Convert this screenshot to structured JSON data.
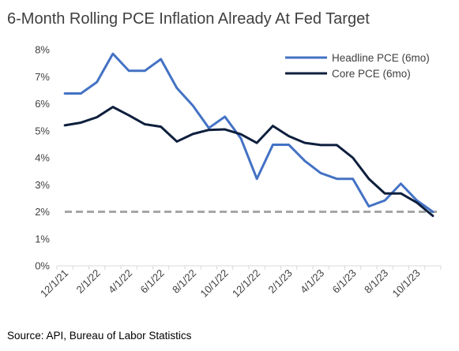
{
  "chart_data": {
    "type": "line",
    "title": "6-Month Rolling PCE Inflation Already At Fed Target",
    "source": "Source: API, Bureau of Labor Statistics",
    "xlabel": "",
    "ylabel": "",
    "ylim": [
      0,
      8
    ],
    "y_ticks": [
      0,
      1,
      2,
      3,
      4,
      5,
      6,
      7,
      8
    ],
    "y_tick_labels": [
      "0%",
      "1%",
      "2%",
      "3%",
      "4%",
      "5%",
      "6%",
      "7%",
      "8%"
    ],
    "x": [
      "12/1/21",
      "1/1/22",
      "2/1/22",
      "3/1/22",
      "4/1/22",
      "5/1/22",
      "6/1/22",
      "7/1/22",
      "8/1/22",
      "9/1/22",
      "10/1/22",
      "11/1/22",
      "12/1/22",
      "1/1/23",
      "2/1/23",
      "3/1/23",
      "4/1/23",
      "5/1/23",
      "6/1/23",
      "7/1/23",
      "8/1/23",
      "9/1/23",
      "10/1/23",
      "11/1/23"
    ],
    "x_tick_labels": [
      "12/1/21",
      "2/1/22",
      "4/1/22",
      "6/1/22",
      "8/1/22",
      "10/1/22",
      "12/1/22",
      "2/1/23",
      "4/1/23",
      "6/1/23",
      "8/1/23",
      "10/1/23"
    ],
    "grid": false,
    "legend_position": "top-right",
    "series": [
      {
        "name": "Headline PCE (6mo)",
        "color": "#4472c4",
        "values": [
          6.38,
          6.38,
          6.8,
          7.85,
          7.22,
          7.22,
          7.65,
          6.58,
          5.93,
          5.1,
          5.52,
          4.72,
          3.22,
          4.48,
          4.48,
          3.88,
          3.43,
          3.22,
          3.22,
          2.2,
          2.42,
          3.04,
          2.42,
          2.0
        ]
      },
      {
        "name": "Core PCE (6mo)",
        "color": "#0e1f3d",
        "values": [
          5.2,
          5.3,
          5.5,
          5.88,
          5.57,
          5.24,
          5.15,
          4.6,
          4.88,
          5.03,
          5.05,
          4.87,
          4.55,
          5.18,
          4.8,
          4.55,
          4.47,
          4.47,
          4.0,
          3.22,
          2.68,
          2.68,
          2.34,
          1.85
        ]
      }
    ],
    "reference_line": {
      "value": 2.0,
      "color": "#a6a6a6"
    }
  }
}
